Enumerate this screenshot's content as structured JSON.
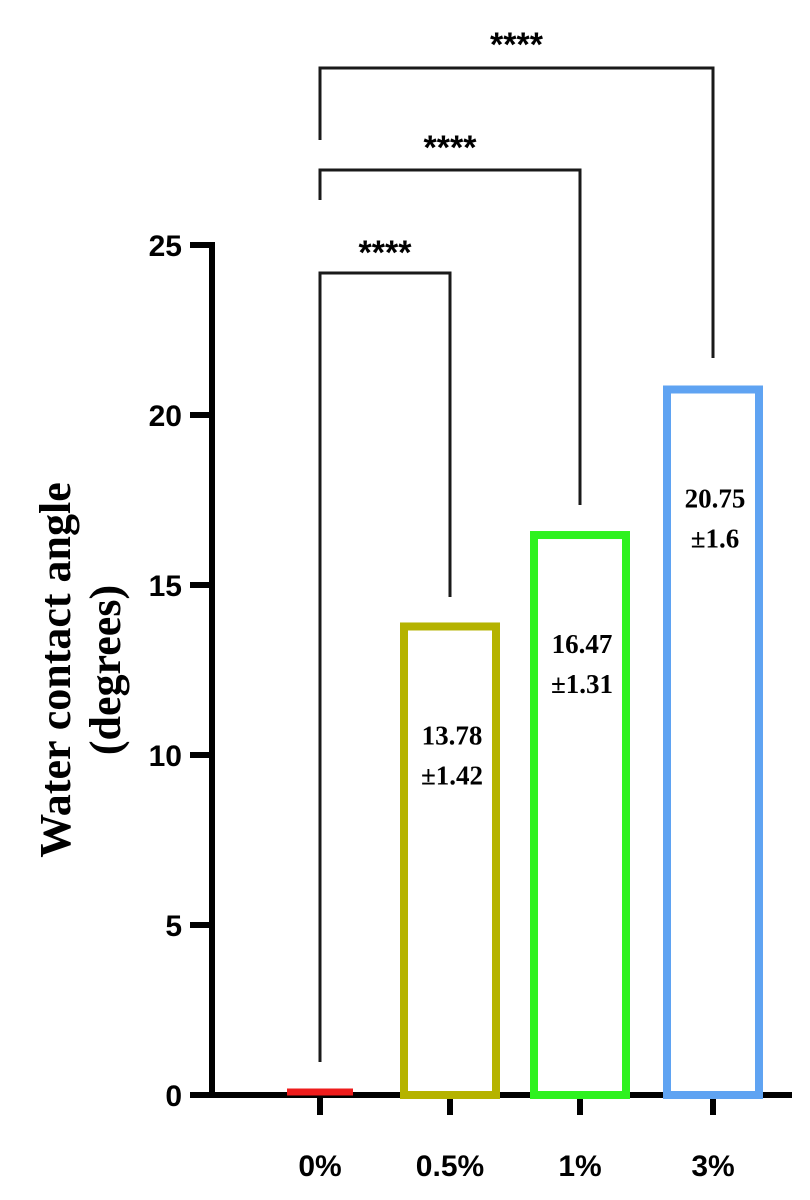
{
  "chart_data": {
    "type": "bar",
    "categories": [
      "0%",
      "0.5%",
      "1%",
      "3%"
    ],
    "values": [
      0,
      13.78,
      16.47,
      20.75
    ],
    "data_labels": [
      null,
      [
        "13.78",
        "±1.42"
      ],
      [
        "16.47",
        "±1.31"
      ],
      [
        "20.75",
        "±1.6"
      ]
    ],
    "bar_style": "outline",
    "colors": [
      "#ee1c1c",
      "#b5b300",
      "#2ef21f",
      "#5fa3f2"
    ],
    "ylabel_lines": [
      "Water contact angle",
      "(degrees)"
    ],
    "xlabel": "",
    "ylim": [
      0,
      25
    ],
    "yticks": [
      0,
      5,
      10,
      15,
      20,
      25
    ],
    "grid": false,
    "legend": "none",
    "significance": [
      {
        "from": "0%",
        "to": "0.5%",
        "label": "****"
      },
      {
        "from": "0%",
        "to": "1%",
        "label": "****"
      },
      {
        "from": "0%",
        "to": "3%",
        "label": "****"
      }
    ]
  }
}
